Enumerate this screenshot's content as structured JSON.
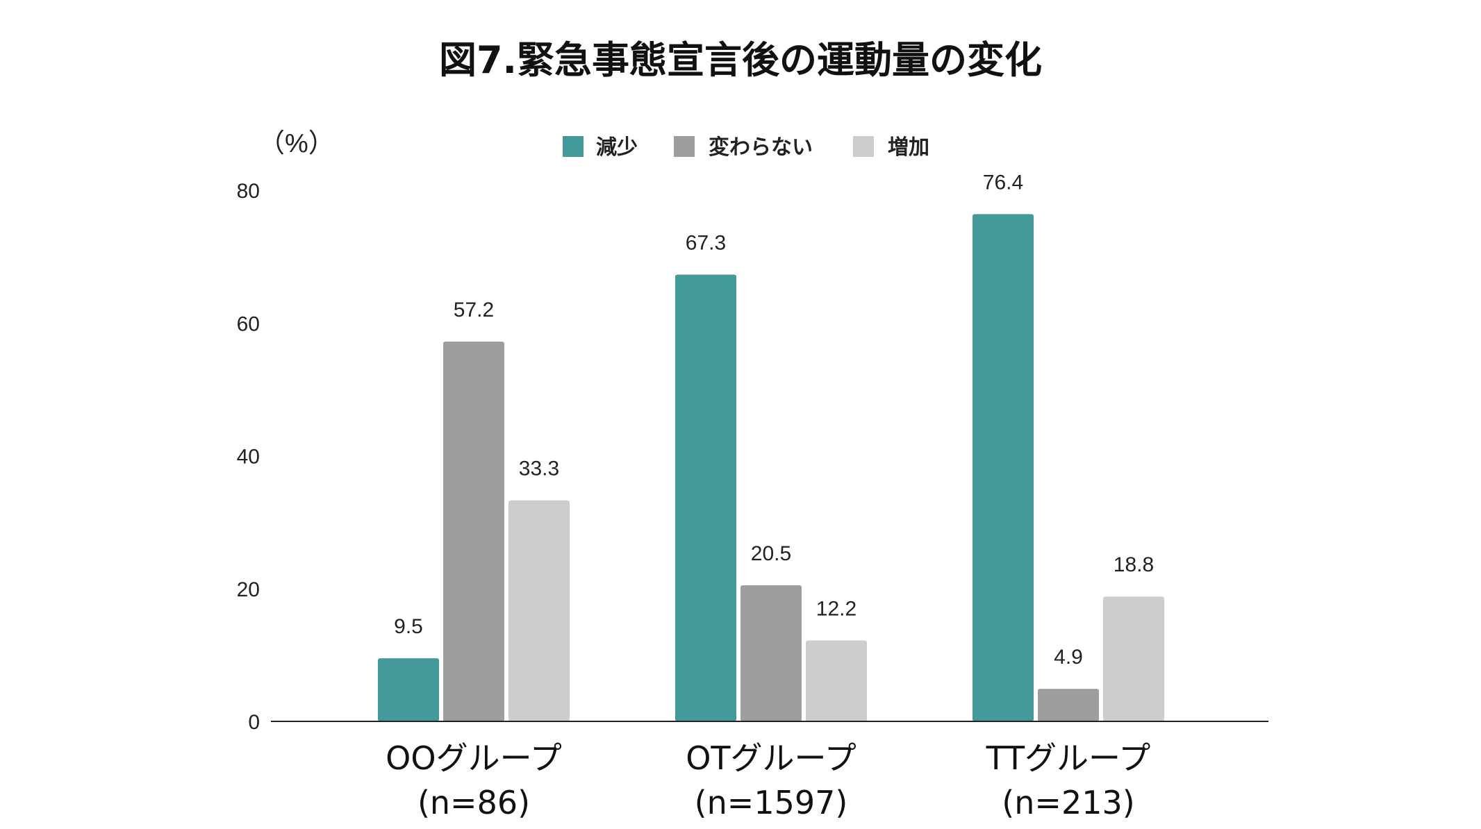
{
  "chart_data": {
    "type": "bar",
    "title": "図7.緊急事態宣言後の運動量の変化",
    "ylabel": "（%）",
    "xlabel": "",
    "ylim": [
      0,
      80
    ],
    "yticks": [
      0,
      20,
      40,
      60,
      80
    ],
    "grid": false,
    "legend_position": "top-center",
    "categories": [
      {
        "name": "OOグループ",
        "n_label": "(n=86)"
      },
      {
        "name": "OTグループ",
        "n_label": "(n=1597)"
      },
      {
        "name": "TTグループ",
        "n_label": "(n=213)"
      }
    ],
    "series": [
      {
        "name": "減少",
        "color": "#44999a",
        "values": [
          9.5,
          67.3,
          76.4
        ]
      },
      {
        "name": "変わらない",
        "color": "#9d9d9d",
        "values": [
          57.2,
          20.5,
          4.9
        ]
      },
      {
        "name": "増加",
        "color": "#cdcdcd",
        "values": [
          33.3,
          12.2,
          18.8
        ]
      }
    ]
  }
}
